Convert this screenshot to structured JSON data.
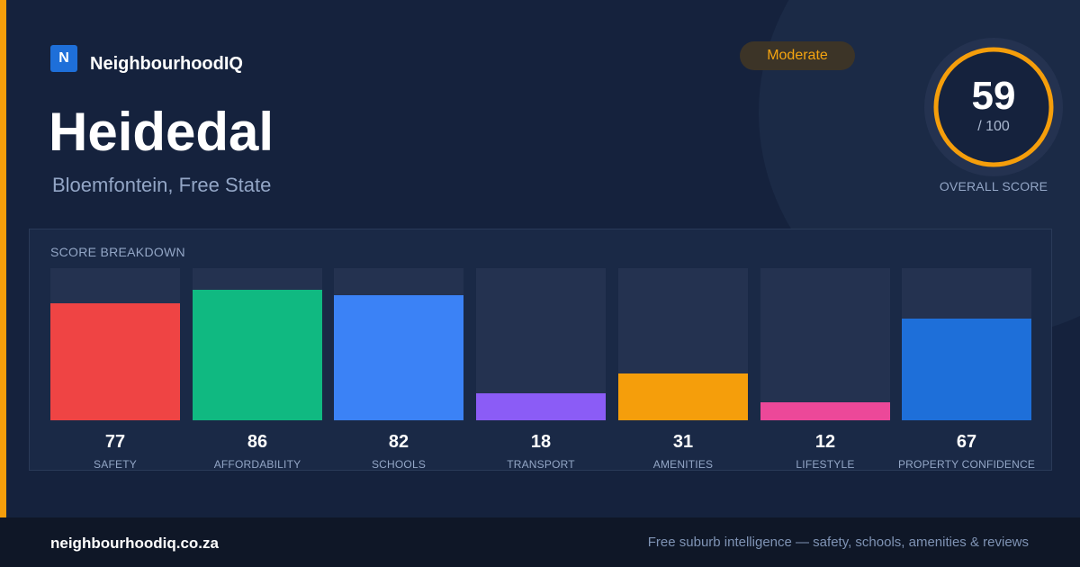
{
  "brand": {
    "logo_letter": "N",
    "name": "NeighbourhoodIQ"
  },
  "suburb": {
    "name": "Heidedal",
    "location": "Bloemfontein, Free State"
  },
  "rating": {
    "label": "Moderate"
  },
  "overall": {
    "score": "59",
    "max": "/ 100",
    "label": "OVERALL SCORE",
    "fraction": 0.59
  },
  "breakdown": {
    "title": "SCORE BREAKDOWN",
    "items": [
      {
        "label": "SAFETY",
        "value": 77,
        "color": "#ef4444"
      },
      {
        "label": "AFFORDABILITY",
        "value": 86,
        "color": "#10b981"
      },
      {
        "label": "SCHOOLS",
        "value": 82,
        "color": "#3b82f6"
      },
      {
        "label": "TRANSPORT",
        "value": 18,
        "color": "#8b5cf6"
      },
      {
        "label": "AMENITIES",
        "value": 31,
        "color": "#f59e0b"
      },
      {
        "label": "LIFESTYLE",
        "value": 12,
        "color": "#ec4899"
      },
      {
        "label": "PROPERTY CONFIDENCE",
        "value": 67,
        "color": "#1e6fd9"
      }
    ]
  },
  "colors": {
    "accent": "#f59e0b",
    "track": "#243250",
    "background": "#15223d"
  },
  "footer": {
    "domain": "neighbourhoodiq.co.za",
    "tagline": "Free suburb intelligence — safety, schools, amenities & reviews"
  }
}
